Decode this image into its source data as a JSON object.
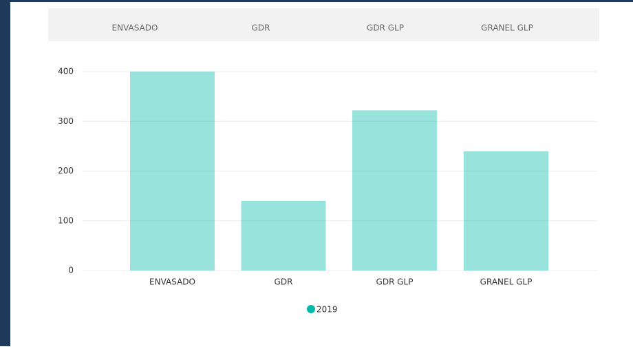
{
  "chart_data": {
    "type": "bar",
    "categories": [
      "ENVASADO",
      "GDR",
      "GDR GLP",
      "GRANEL GLP"
    ],
    "series": [
      {
        "name": "2019",
        "color": "#01b8aa",
        "values": [
          400,
          140,
          322,
          240
        ]
      }
    ],
    "ylim": [
      0,
      400
    ],
    "yticks": [
      0,
      100,
      200,
      300,
      400
    ],
    "grid": true,
    "legend": "bottom"
  }
}
